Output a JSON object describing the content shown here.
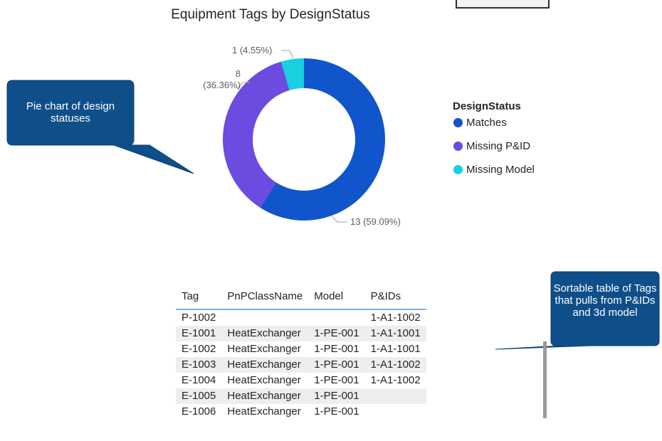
{
  "chart_data": {
    "type": "pie",
    "title": "Equipment Tags by DesignStatus",
    "legend_title": "DesignStatus",
    "legend_position": "right",
    "categories": [
      "Matches",
      "Missing P&ID",
      "Missing Model"
    ],
    "values": [
      13,
      8,
      1
    ],
    "data_labels": [
      "13 (59.09%)",
      "8 (36.36%)",
      "1 (4.55%)"
    ],
    "colors": [
      "#1155cc",
      "#6b4be0",
      "#17d0e0"
    ]
  },
  "callouts": {
    "pie_note": "Pie chart of design statuses",
    "table_note": "Sortable table of Tags that pulls from P&IDs and 3d model"
  },
  "table": {
    "headers": [
      "Tag",
      "PnPClassName",
      "Model",
      "P&IDs"
    ],
    "rows": [
      [
        "P-1002",
        "",
        "",
        "1-A1-1002"
      ],
      [
        "E-1001",
        "HeatExchanger",
        "1-PE-001",
        "1-A1-1001"
      ],
      [
        "E-1002",
        "HeatExchanger",
        "1-PE-001",
        "1-A1-1001"
      ],
      [
        "E-1003",
        "HeatExchanger",
        "1-PE-001",
        "1-A1-1002"
      ],
      [
        "E-1004",
        "HeatExchanger",
        "1-PE-001",
        "1-A1-1002"
      ],
      [
        "E-1005",
        "HeatExchanger",
        "1-PE-001",
        ""
      ],
      [
        "E-1006",
        "HeatExchanger",
        "1-PE-001",
        ""
      ]
    ]
  }
}
